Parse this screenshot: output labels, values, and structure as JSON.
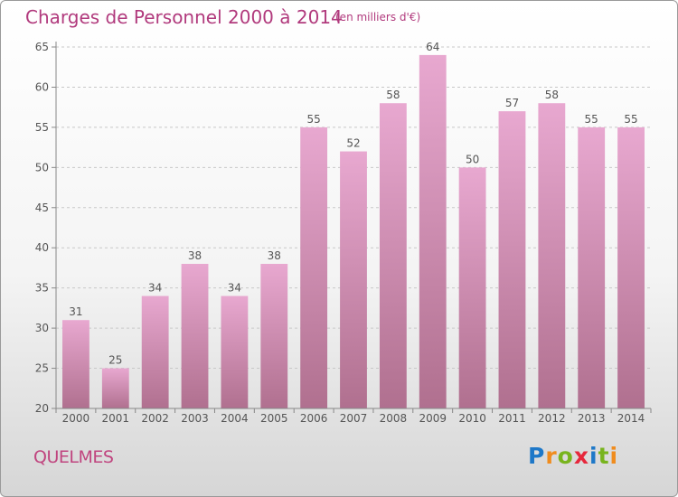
{
  "title": "Charges de Personnel 2000 à 2014",
  "subtitle": "(en milliers d'€)",
  "commune": "QUELMES",
  "logo": {
    "letters": [
      "P",
      "r",
      "o",
      "x",
      "i",
      "t",
      "i"
    ],
    "colors": [
      "#1e78c8",
      "#f08c1e",
      "#78b41e",
      "#e6283c",
      "#1e78c8",
      "#78b41e",
      "#f08c1e"
    ]
  },
  "chart_data": {
    "type": "bar",
    "categories": [
      "2000",
      "2001",
      "2002",
      "2003",
      "2004",
      "2005",
      "2006",
      "2007",
      "2008",
      "2009",
      "2010",
      "2011",
      "2012",
      "2013",
      "2014"
    ],
    "values": [
      31,
      25,
      34,
      38,
      34,
      38,
      55,
      52,
      58,
      64,
      50,
      57,
      58,
      55,
      55
    ],
    "ylim": [
      20,
      65
    ],
    "yticks": [
      20,
      25,
      30,
      35,
      40,
      45,
      50,
      55,
      60,
      65
    ],
    "bar_color_top": "#e8a8d0",
    "bar_color_bottom": "#b0708f",
    "grid": true
  }
}
